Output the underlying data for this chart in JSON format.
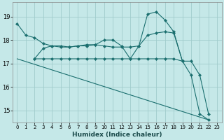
{
  "xlabel": "Humidex (Indice chaleur)",
  "bg_color": "#c5e8e8",
  "grid_color": "#a0cccc",
  "line_color": "#1a6e6e",
  "xlim": [
    -0.5,
    23.5
  ],
  "ylim": [
    14.5,
    19.6
  ],
  "yticks": [
    15,
    16,
    17,
    18,
    19
  ],
  "xticks": [
    0,
    1,
    2,
    3,
    4,
    5,
    6,
    7,
    8,
    9,
    10,
    11,
    12,
    13,
    14,
    15,
    16,
    17,
    18,
    19,
    20,
    21,
    22,
    23
  ],
  "series": [
    {
      "x": [
        0,
        1,
        2,
        3,
        4,
        5,
        6,
        7,
        8,
        9,
        10,
        11,
        12,
        13,
        14,
        15,
        16,
        17,
        18,
        19,
        20,
        21,
        22
      ],
      "y": [
        18.7,
        18.2,
        18.1,
        17.85,
        17.75,
        17.7,
        17.7,
        17.75,
        17.75,
        17.8,
        17.75,
        17.7,
        17.7,
        17.7,
        17.75,
        18.2,
        18.3,
        18.35,
        18.3,
        17.1,
        16.5,
        14.85,
        14.6
      ]
    },
    {
      "x": [
        2,
        3,
        4,
        5,
        6,
        7,
        8,
        9,
        10,
        11,
        12,
        13,
        14,
        15,
        16,
        17,
        18,
        19
      ],
      "y": [
        17.2,
        17.2,
        17.2,
        17.2,
        17.2,
        17.2,
        17.2,
        17.2,
        17.2,
        17.2,
        17.2,
        17.2,
        17.2,
        17.2,
        17.2,
        17.2,
        17.2,
        17.1
      ]
    },
    {
      "x": [
        2,
        3,
        4,
        5,
        6,
        7,
        8,
        9,
        10,
        11,
        12,
        13,
        14,
        15,
        16,
        17,
        18,
        19,
        20,
        21,
        22
      ],
      "y": [
        17.2,
        17.65,
        17.75,
        17.75,
        17.7,
        17.75,
        17.8,
        17.8,
        18.0,
        18.0,
        17.75,
        17.2,
        17.75,
        19.1,
        19.2,
        18.85,
        18.35,
        17.1,
        17.1,
        16.5,
        14.85
      ]
    },
    {
      "x": [
        0,
        22
      ],
      "y": [
        17.2,
        14.6
      ]
    }
  ]
}
